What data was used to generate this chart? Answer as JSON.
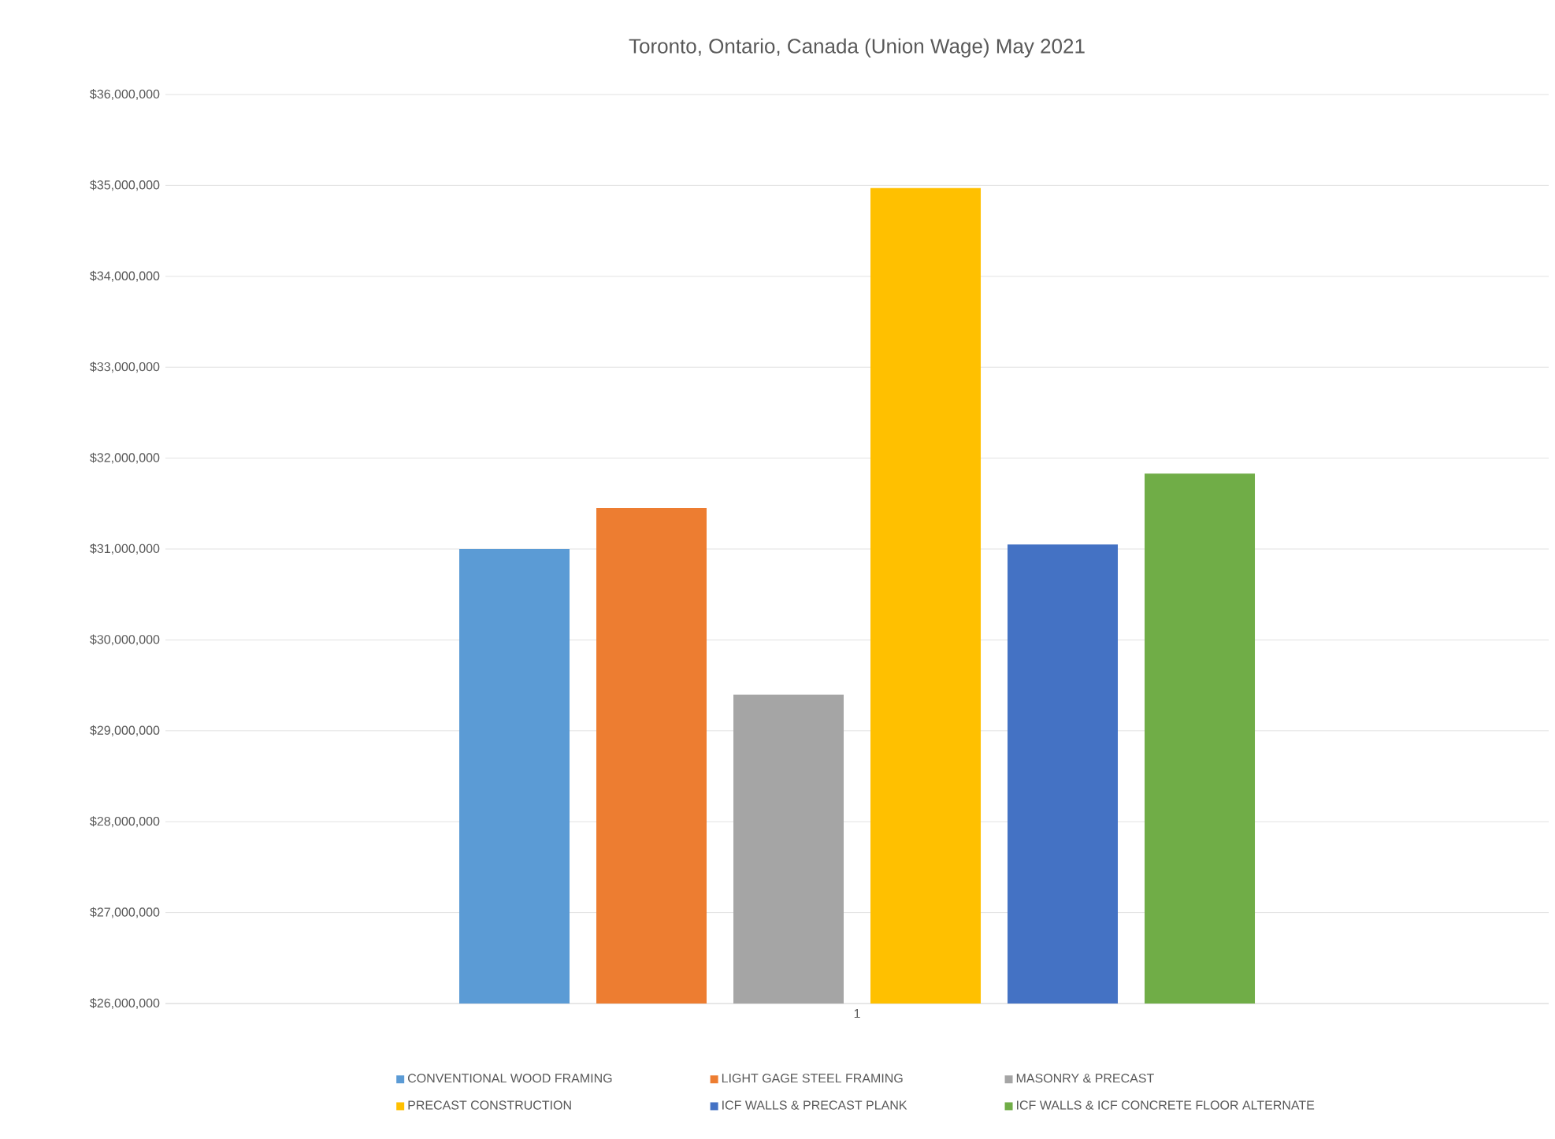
{
  "chart_data": {
    "type": "bar",
    "title": "Toronto, Ontario, Canada (Union Wage) May 2021",
    "categories": [
      "1"
    ],
    "series": [
      {
        "name": "CONVENTIONAL WOOD FRAMING",
        "color": "#5b9bd5",
        "values": [
          31000000
        ]
      },
      {
        "name": "LIGHT GAGE STEEL FRAMING",
        "color": "#ed7d31",
        "values": [
          31450000
        ]
      },
      {
        "name": "MASONRY & PRECAST",
        "color": "#a5a5a5",
        "values": [
          29400000
        ]
      },
      {
        "name": "PRECAST CONSTRUCTION",
        "color": "#ffc000",
        "values": [
          34970000
        ]
      },
      {
        "name": "ICF WALLS & PRECAST PLANK",
        "color": "#4472c4",
        "values": [
          31050000
        ]
      },
      {
        "name": "ICF WALLS & ICF CONCRETE FLOOR ALTERNATE",
        "color": "#70ad47",
        "values": [
          31830000
        ]
      }
    ],
    "ylim": [
      26000000,
      36000000
    ],
    "yticks": [
      {
        "value": 26000000,
        "label": "$26,000,000"
      },
      {
        "value": 27000000,
        "label": "$27,000,000"
      },
      {
        "value": 28000000,
        "label": "$28,000,000"
      },
      {
        "value": 29000000,
        "label": "$29,000,000"
      },
      {
        "value": 30000000,
        "label": "$30,000,000"
      },
      {
        "value": 31000000,
        "label": "$31,000,000"
      },
      {
        "value": 32000000,
        "label": "$32,000,000"
      },
      {
        "value": 33000000,
        "label": "$33,000,000"
      },
      {
        "value": 34000000,
        "label": "$34,000,000"
      },
      {
        "value": 35000000,
        "label": "$35,000,000"
      },
      {
        "value": 36000000,
        "label": "$36,000,000"
      }
    ],
    "grid": "y",
    "legend": "bottom"
  }
}
